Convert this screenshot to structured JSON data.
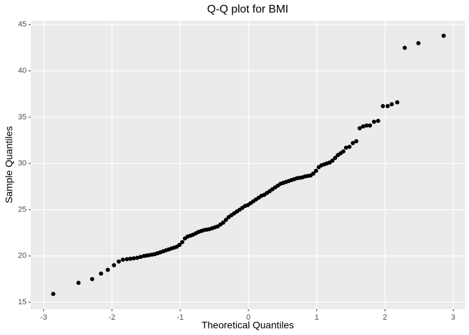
{
  "chart_data": {
    "type": "scatter",
    "title": "Q-Q plot for BMI",
    "xlabel": "Theoretical Quantiles",
    "ylabel": "Sample Quantiles",
    "xlim": [
      -3.19,
      3.17
    ],
    "ylim": [
      14.25,
      45.4
    ],
    "xticks": [
      -3,
      -2,
      -1,
      0,
      1,
      2,
      3
    ],
    "yticks": [
      15,
      20,
      25,
      30,
      35,
      40,
      45
    ],
    "grid": true,
    "color": "#000000",
    "x": [
      -2.86,
      -2.49,
      -2.29,
      -2.16,
      -2.06,
      -1.97,
      -1.9,
      -1.84,
      -1.78,
      -1.73,
      -1.68,
      -1.63,
      -1.58,
      -1.53,
      -1.49,
      -1.45,
      -1.41,
      -1.37,
      -1.33,
      -1.29,
      -1.25,
      -1.21,
      -1.17,
      -1.13,
      -1.09,
      -1.05,
      -1.01,
      -0.97,
      -0.93,
      -0.89,
      -0.85,
      -0.81,
      -0.77,
      -0.73,
      -0.69,
      -0.65,
      -0.61,
      -0.57,
      -0.53,
      -0.49,
      -0.45,
      -0.41,
      -0.37,
      -0.33,
      -0.29,
      -0.25,
      -0.21,
      -0.17,
      -0.13,
      -0.09,
      -0.05,
      -0.01,
      0.03,
      0.07,
      0.11,
      0.15,
      0.19,
      0.23,
      0.27,
      0.31,
      0.35,
      0.39,
      0.43,
      0.47,
      0.51,
      0.55,
      0.59,
      0.63,
      0.67,
      0.71,
      0.75,
      0.79,
      0.83,
      0.87,
      0.91,
      0.95,
      0.99,
      1.03,
      1.07,
      1.11,
      1.15,
      1.19,
      1.23,
      1.27,
      1.31,
      1.35,
      1.39,
      1.43,
      1.48,
      1.53,
      1.58,
      1.63,
      1.68,
      1.73,
      1.78,
      1.84,
      1.9,
      1.97,
      2.04,
      2.1,
      2.18,
      2.29,
      2.49,
      2.86
    ],
    "values": [
      15.9,
      17.1,
      17.5,
      18.1,
      18.5,
      19.0,
      19.4,
      19.6,
      19.65,
      19.7,
      19.75,
      19.8,
      19.9,
      20.0,
      20.05,
      20.1,
      20.15,
      20.2,
      20.3,
      20.4,
      20.5,
      20.6,
      20.7,
      20.8,
      20.9,
      21.0,
      21.2,
      21.5,
      21.9,
      22.1,
      22.2,
      22.3,
      22.45,
      22.6,
      22.7,
      22.8,
      22.85,
      22.9,
      23.0,
      23.1,
      23.2,
      23.4,
      23.6,
      23.9,
      24.2,
      24.4,
      24.6,
      24.8,
      25.0,
      25.2,
      25.4,
      25.5,
      25.7,
      25.9,
      26.1,
      26.3,
      26.5,
      26.6,
      26.8,
      27.0,
      27.2,
      27.4,
      27.6,
      27.8,
      27.9,
      28.0,
      28.1,
      28.2,
      28.3,
      28.4,
      28.45,
      28.5,
      28.6,
      28.65,
      28.7,
      28.9,
      29.2,
      29.6,
      29.8,
      29.9,
      30.0,
      30.1,
      30.3,
      30.6,
      30.9,
      31.1,
      31.3,
      31.7,
      31.8,
      32.2,
      32.4,
      33.8,
      34.0,
      34.1,
      34.1,
      34.5,
      34.6,
      36.2,
      36.2,
      36.4,
      36.6,
      42.5,
      43.0,
      43.8
    ]
  }
}
